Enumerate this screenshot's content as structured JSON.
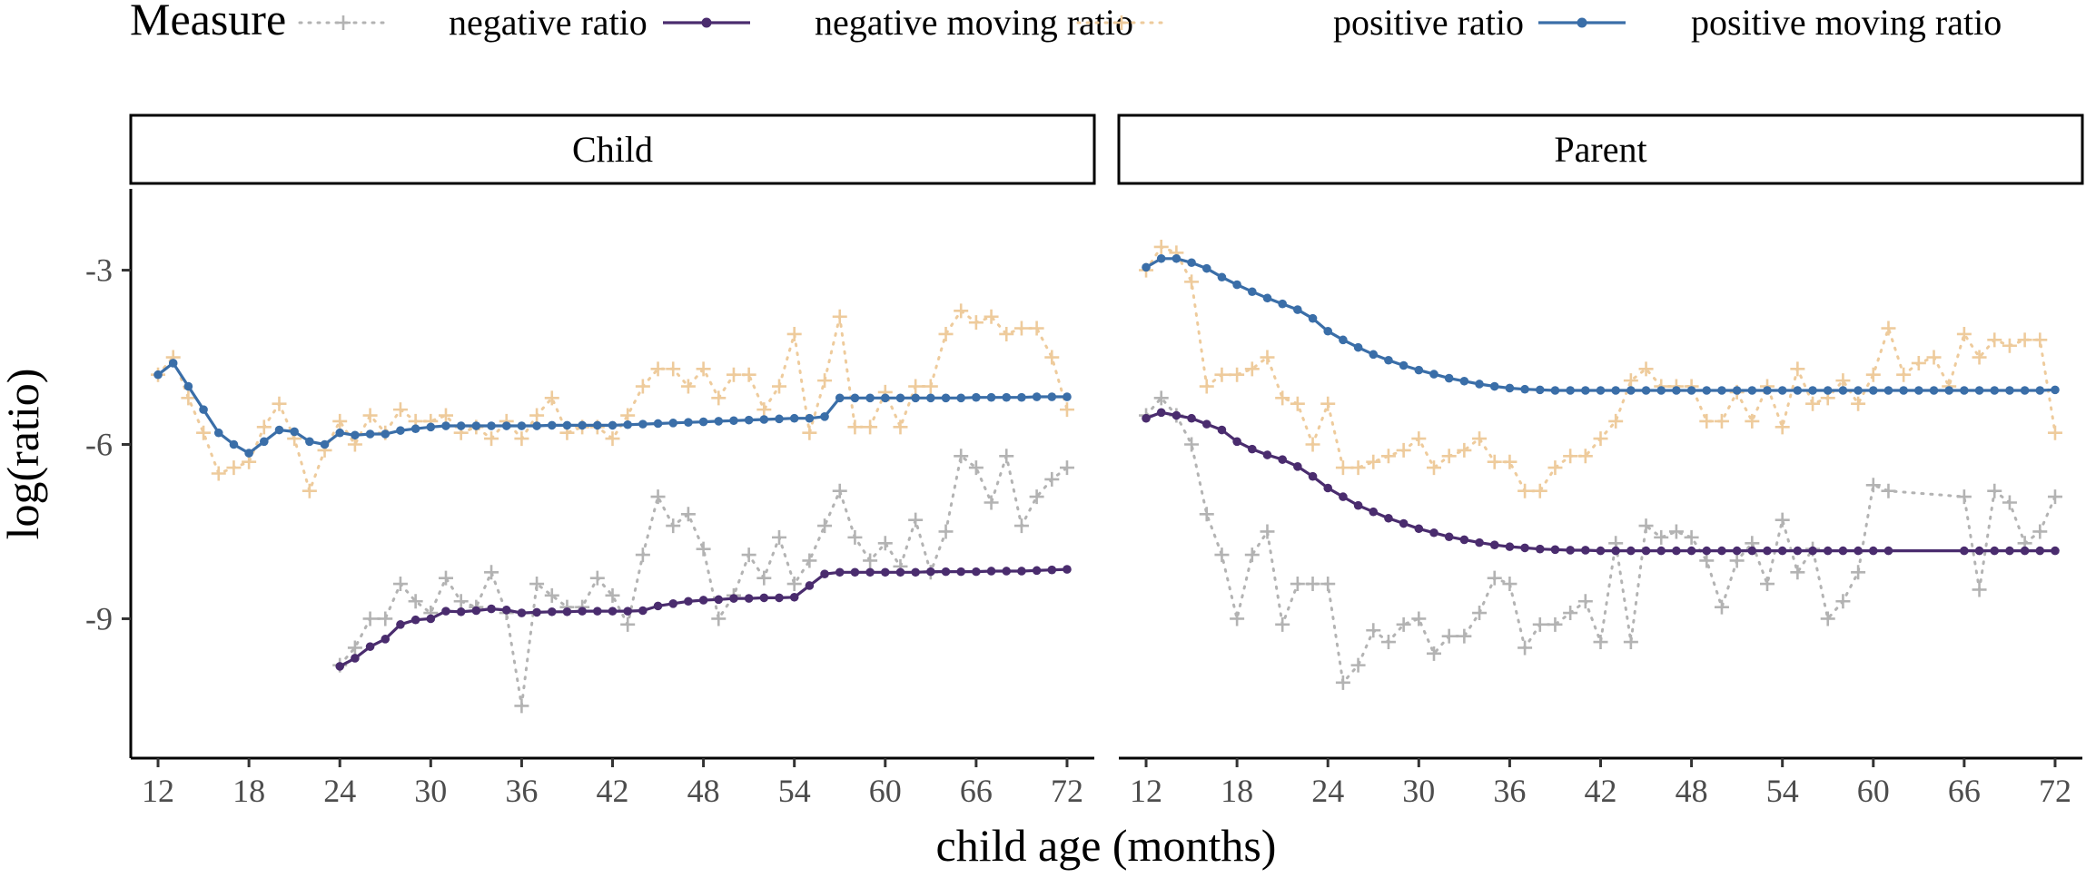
{
  "legend": {
    "title": "Measure",
    "entries": [
      {
        "key": "neg_ratio",
        "label": "negative ratio",
        "color": "#b3b3b3",
        "style": "dotted-plus"
      },
      {
        "key": "neg_moving",
        "label": "negative moving ratio",
        "color": "#4a2c6e",
        "style": "line-dot"
      },
      {
        "key": "pos_ratio",
        "label": "positive ratio",
        "color": "#eecb9c",
        "style": "dotted-plus"
      },
      {
        "key": "pos_moving",
        "label": "positive moving ratio",
        "color": "#3a6ea8",
        "style": "line-dot"
      }
    ]
  },
  "axes": {
    "xlabel": "child age (months)",
    "ylabel": "log(ratio)",
    "xticks": [
      12,
      18,
      24,
      30,
      36,
      42,
      48,
      54,
      60,
      66,
      72
    ],
    "yticks": [
      -3,
      -6,
      -9
    ],
    "xlim": [
      10.2,
      73.8
    ],
    "ylim": [
      -11.4,
      -1.6
    ]
  },
  "chart_data": [
    {
      "type": "line",
      "panel": "Child",
      "series": [
        {
          "name": "negative ratio",
          "x": [
            24,
            25,
            26,
            27,
            28,
            29,
            30,
            31,
            32,
            33,
            34,
            35,
            36,
            37,
            38,
            39,
            40,
            41,
            42,
            43,
            44,
            45,
            46,
            47,
            48,
            49,
            50,
            51,
            52,
            53,
            54,
            55,
            56,
            57,
            58,
            59,
            60,
            61,
            62,
            63,
            64,
            65,
            66,
            67,
            68,
            69,
            70,
            71,
            72
          ],
          "y": [
            -9.8,
            -9.5,
            -9.0,
            -9.0,
            -8.4,
            -8.7,
            -8.9,
            -8.3,
            -8.7,
            -8.8,
            -8.2,
            -8.9,
            -10.5,
            -8.4,
            -8.6,
            -8.8,
            -8.8,
            -8.3,
            -8.6,
            -9.1,
            -7.9,
            -6.9,
            -7.4,
            -7.2,
            -7.8,
            -9.0,
            -8.6,
            -7.9,
            -8.3,
            -7.6,
            -8.4,
            -8.0,
            -7.4,
            -6.8,
            -7.6,
            -8.0,
            -7.7,
            -8.1,
            -7.3,
            -8.2,
            -7.5,
            -6.2,
            -6.4,
            -7.0,
            -6.2,
            -7.4,
            -6.9,
            -6.6,
            -6.4
          ]
        },
        {
          "name": "negative moving ratio",
          "x": [
            24,
            25,
            26,
            27,
            28,
            29,
            30,
            31,
            32,
            33,
            34,
            35,
            36,
            37,
            38,
            39,
            40,
            41,
            42,
            43,
            44,
            45,
            46,
            47,
            48,
            49,
            50,
            51,
            52,
            53,
            54,
            55,
            56,
            57,
            58,
            59,
            60,
            61,
            62,
            63,
            64,
            65,
            66,
            67,
            68,
            69,
            70,
            71,
            72
          ],
          "y": [
            -9.82,
            -9.68,
            -9.48,
            -9.35,
            -9.1,
            -9.02,
            -9.0,
            -8.87,
            -8.88,
            -8.86,
            -8.83,
            -8.85,
            -8.9,
            -8.89,
            -8.88,
            -8.88,
            -8.87,
            -8.87,
            -8.87,
            -8.87,
            -8.86,
            -8.78,
            -8.74,
            -8.7,
            -8.68,
            -8.67,
            -8.65,
            -8.65,
            -8.64,
            -8.64,
            -8.63,
            -8.43,
            -8.23,
            -8.2,
            -8.2,
            -8.2,
            -8.2,
            -8.2,
            -8.2,
            -8.19,
            -8.19,
            -8.19,
            -8.19,
            -8.18,
            -8.18,
            -8.18,
            -8.17,
            -8.16,
            -8.15
          ]
        },
        {
          "name": "positive ratio",
          "x": [
            12,
            13,
            14,
            15,
            16,
            17,
            18,
            19,
            20,
            21,
            22,
            23,
            24,
            25,
            26,
            27,
            28,
            29,
            30,
            31,
            32,
            33,
            34,
            35,
            36,
            37,
            38,
            39,
            40,
            41,
            42,
            43,
            44,
            45,
            46,
            47,
            48,
            49,
            50,
            51,
            52,
            53,
            54,
            55,
            56,
            57,
            58,
            59,
            60,
            61,
            62,
            63,
            64,
            65,
            66,
            67,
            68,
            69,
            70,
            71,
            72
          ],
          "y": [
            -4.8,
            -4.5,
            -5.2,
            -5.8,
            -6.5,
            -6.4,
            -6.3,
            -5.7,
            -5.3,
            -5.9,
            -6.8,
            -6.1,
            -5.6,
            -6.0,
            -5.5,
            -5.8,
            -5.4,
            -5.6,
            -5.6,
            -5.5,
            -5.8,
            -5.7,
            -5.9,
            -5.6,
            -5.9,
            -5.5,
            -5.2,
            -5.8,
            -5.7,
            -5.7,
            -5.9,
            -5.5,
            -5.0,
            -4.7,
            -4.7,
            -5.0,
            -4.7,
            -5.2,
            -4.8,
            -4.8,
            -5.4,
            -5.0,
            -4.1,
            -5.8,
            -4.9,
            -3.8,
            -5.7,
            -5.7,
            -5.1,
            -5.7,
            -5.0,
            -5.0,
            -4.1,
            -3.7,
            -3.9,
            -3.8,
            -4.1,
            -4.0,
            -4.0,
            -4.5,
            -5.4
          ]
        },
        {
          "name": "positive moving ratio",
          "x": [
            12,
            13,
            14,
            15,
            16,
            17,
            18,
            19,
            20,
            21,
            22,
            23,
            24,
            25,
            26,
            27,
            28,
            29,
            30,
            31,
            32,
            33,
            34,
            35,
            36,
            37,
            38,
            39,
            40,
            41,
            42,
            43,
            44,
            45,
            46,
            47,
            48,
            49,
            50,
            51,
            52,
            53,
            54,
            55,
            56,
            57,
            58,
            59,
            60,
            61,
            62,
            63,
            64,
            65,
            66,
            67,
            68,
            69,
            70,
            71,
            72
          ],
          "y": [
            -4.8,
            -4.6,
            -5.0,
            -5.4,
            -5.8,
            -6.0,
            -6.15,
            -5.95,
            -5.75,
            -5.78,
            -5.95,
            -6.0,
            -5.8,
            -5.84,
            -5.82,
            -5.82,
            -5.76,
            -5.73,
            -5.7,
            -5.68,
            -5.68,
            -5.68,
            -5.68,
            -5.68,
            -5.68,
            -5.68,
            -5.67,
            -5.67,
            -5.67,
            -5.67,
            -5.67,
            -5.66,
            -5.65,
            -5.64,
            -5.63,
            -5.62,
            -5.61,
            -5.6,
            -5.59,
            -5.58,
            -5.57,
            -5.56,
            -5.55,
            -5.55,
            -5.52,
            -5.2,
            -5.2,
            -5.2,
            -5.2,
            -5.2,
            -5.2,
            -5.2,
            -5.2,
            -5.2,
            -5.19,
            -5.19,
            -5.19,
            -5.19,
            -5.18,
            -5.18,
            -5.18
          ]
        }
      ]
    },
    {
      "type": "line",
      "panel": "Parent",
      "series": [
        {
          "name": "negative ratio",
          "x": [
            12,
            13,
            14,
            15,
            16,
            17,
            18,
            19,
            20,
            21,
            22,
            23,
            24,
            25,
            26,
            27,
            28,
            29,
            30,
            31,
            32,
            33,
            34,
            35,
            36,
            37,
            38,
            39,
            40,
            41,
            42,
            43,
            44,
            45,
            46,
            47,
            48,
            49,
            50,
            51,
            52,
            53,
            54,
            55,
            56,
            57,
            58,
            59,
            60,
            61,
            66,
            67,
            68,
            69,
            70,
            71,
            72
          ],
          "y": [
            -5.5,
            -5.2,
            -5.5,
            -6.0,
            -7.2,
            -7.9,
            -9.0,
            -7.9,
            -7.5,
            -9.1,
            -8.4,
            -8.4,
            -8.4,
            -10.1,
            -9.8,
            -9.2,
            -9.4,
            -9.1,
            -9.0,
            -9.6,
            -9.3,
            -9.3,
            -8.9,
            -8.3,
            -8.4,
            -9.5,
            -9.1,
            -9.1,
            -8.9,
            -8.7,
            -9.4,
            -7.7,
            -9.4,
            -7.4,
            -7.6,
            -7.5,
            -7.6,
            -8.0,
            -8.8,
            -8.0,
            -7.7,
            -8.4,
            -7.3,
            -8.2,
            -7.8,
            -9.0,
            -8.7,
            -8.2,
            -6.7,
            -6.8,
            -6.9,
            -8.5,
            -6.8,
            -7.0,
            -7.7,
            -7.5,
            -6.9
          ]
        },
        {
          "name": "negative moving ratio",
          "x": [
            12,
            13,
            14,
            15,
            16,
            17,
            18,
            19,
            20,
            21,
            22,
            23,
            24,
            25,
            26,
            27,
            28,
            29,
            30,
            31,
            32,
            33,
            34,
            35,
            36,
            37,
            38,
            39,
            40,
            41,
            42,
            43,
            44,
            45,
            46,
            47,
            48,
            49,
            50,
            51,
            52,
            53,
            54,
            55,
            56,
            57,
            58,
            59,
            60,
            61,
            66,
            67,
            68,
            69,
            70,
            71,
            72
          ],
          "y": [
            -5.55,
            -5.45,
            -5.5,
            -5.55,
            -5.65,
            -5.75,
            -5.95,
            -6.08,
            -6.18,
            -6.26,
            -6.38,
            -6.55,
            -6.75,
            -6.9,
            -7.05,
            -7.16,
            -7.27,
            -7.36,
            -7.45,
            -7.52,
            -7.59,
            -7.64,
            -7.69,
            -7.73,
            -7.76,
            -7.78,
            -7.8,
            -7.81,
            -7.82,
            -7.82,
            -7.83,
            -7.83,
            -7.83,
            -7.83,
            -7.83,
            -7.83,
            -7.83,
            -7.83,
            -7.83,
            -7.83,
            -7.83,
            -7.83,
            -7.83,
            -7.83,
            -7.83,
            -7.83,
            -7.83,
            -7.83,
            -7.83,
            -7.83,
            -7.83,
            -7.83,
            -7.83,
            -7.83,
            -7.83,
            -7.83,
            -7.83
          ]
        },
        {
          "name": "positive ratio",
          "x": [
            12,
            13,
            14,
            15,
            16,
            17,
            18,
            19,
            20,
            21,
            22,
            23,
            24,
            25,
            26,
            27,
            28,
            29,
            30,
            31,
            32,
            33,
            34,
            35,
            36,
            37,
            38,
            39,
            40,
            41,
            42,
            43,
            44,
            45,
            46,
            47,
            48,
            49,
            50,
            51,
            52,
            53,
            54,
            55,
            56,
            57,
            58,
            59,
            60,
            61,
            62,
            63,
            64,
            65,
            66,
            67,
            68,
            69,
            70,
            71,
            72
          ],
          "y": [
            -3.0,
            -2.6,
            -2.7,
            -3.2,
            -5.0,
            -4.8,
            -4.8,
            -4.7,
            -4.5,
            -5.2,
            -5.3,
            -6.0,
            -5.3,
            -6.4,
            -6.4,
            -6.3,
            -6.2,
            -6.1,
            -5.9,
            -6.4,
            -6.2,
            -6.1,
            -5.9,
            -6.3,
            -6.3,
            -6.8,
            -6.8,
            -6.4,
            -6.2,
            -6.2,
            -5.9,
            -5.6,
            -4.9,
            -4.7,
            -5.0,
            -5.0,
            -5.0,
            -5.6,
            -5.6,
            -5.1,
            -5.6,
            -5.0,
            -5.7,
            -4.7,
            -5.3,
            -5.2,
            -4.9,
            -5.3,
            -4.8,
            -4.0,
            -4.8,
            -4.6,
            -4.5,
            -5.0,
            -4.1,
            -4.5,
            -4.2,
            -4.3,
            -4.2,
            -4.2,
            -5.8
          ]
        },
        {
          "name": "positive moving ratio",
          "x": [
            12,
            13,
            14,
            15,
            16,
            17,
            18,
            19,
            20,
            21,
            22,
            23,
            24,
            25,
            26,
            27,
            28,
            29,
            30,
            31,
            32,
            33,
            34,
            35,
            36,
            37,
            38,
            39,
            40,
            41,
            42,
            43,
            44,
            45,
            46,
            47,
            48,
            49,
            50,
            51,
            52,
            53,
            54,
            55,
            56,
            57,
            58,
            59,
            60,
            61,
            62,
            63,
            64,
            65,
            66,
            67,
            68,
            69,
            70,
            71,
            72
          ],
          "y": [
            -2.95,
            -2.8,
            -2.8,
            -2.87,
            -2.97,
            -3.12,
            -3.25,
            -3.37,
            -3.48,
            -3.58,
            -3.68,
            -3.83,
            -4.05,
            -4.2,
            -4.33,
            -4.45,
            -4.55,
            -4.64,
            -4.72,
            -4.79,
            -4.86,
            -4.91,
            -4.96,
            -5.0,
            -5.03,
            -5.05,
            -5.06,
            -5.07,
            -5.07,
            -5.07,
            -5.07,
            -5.07,
            -5.07,
            -5.07,
            -5.07,
            -5.07,
            -5.07,
            -5.07,
            -5.07,
            -5.07,
            -5.07,
            -5.07,
            -5.07,
            -5.07,
            -5.07,
            -5.07,
            -5.07,
            -5.07,
            -5.07,
            -5.07,
            -5.07,
            -5.07,
            -5.07,
            -5.07,
            -5.07,
            -5.07,
            -5.07,
            -5.07,
            -5.07,
            -5.07,
            -5.06
          ]
        }
      ]
    }
  ]
}
